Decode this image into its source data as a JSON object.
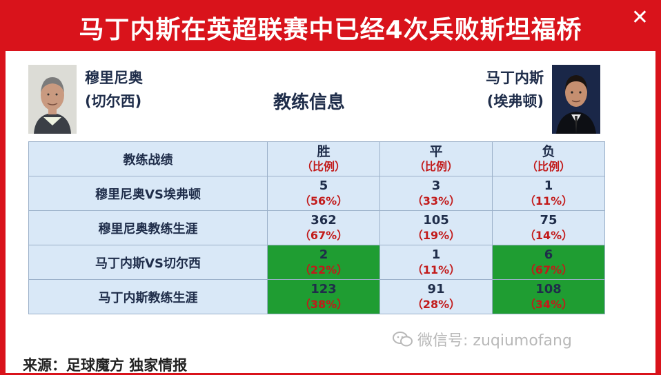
{
  "header": {
    "title": "马丁内斯在英超联赛中已经4次兵败斯坦福桥",
    "close_label": "✕"
  },
  "coaches": {
    "left": {
      "name": "穆里尼奥",
      "team": "(切尔西)"
    },
    "right": {
      "name": "马丁内斯",
      "team": "(埃弗顿)"
    }
  },
  "section_title": "教练信息",
  "table": {
    "header": {
      "label": "教练战绩",
      "cols": [
        {
          "main": "胜",
          "sub": "（比例）"
        },
        {
          "main": "平",
          "sub": "（比例）"
        },
        {
          "main": "负",
          "sub": "（比例）"
        }
      ]
    },
    "rows": [
      {
        "label": "穆里尼奥VS埃弗顿",
        "cells": [
          {
            "num": "5",
            "pct": "（56%）"
          },
          {
            "num": "3",
            "pct": "（33%）"
          },
          {
            "num": "1",
            "pct": "（11%）"
          }
        ]
      },
      {
        "label": "穆里尼奥教练生涯",
        "cells": [
          {
            "num": "362",
            "pct": "（67%）"
          },
          {
            "num": "105",
            "pct": "（19%）"
          },
          {
            "num": "75",
            "pct": "（14%）"
          }
        ]
      },
      {
        "label": "马丁内斯VS切尔西",
        "cells": [
          {
            "num": "2",
            "pct": "（22%）"
          },
          {
            "num": "1",
            "pct": "（11%）"
          },
          {
            "num": "6",
            "pct": "（67%）"
          }
        ]
      },
      {
        "label": "马丁内斯教练生涯",
        "cells": [
          {
            "num": "123",
            "pct": "（38%）"
          },
          {
            "num": "91",
            "pct": "（28%）"
          },
          {
            "num": "108",
            "pct": "（34%）"
          }
        ]
      }
    ]
  },
  "highlight_color": "#1f9d32",
  "watermark": "微信号: zuqiumofang",
  "source": "来源：足球魔方 独家情报"
}
